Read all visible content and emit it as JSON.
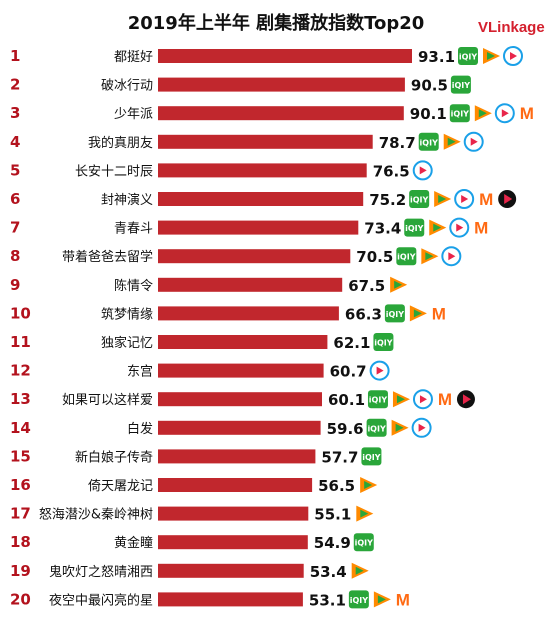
{
  "header": {
    "title": "2019年上半年 剧集播放指数Top20",
    "logo_text": "VLinkage"
  },
  "colors": {
    "bar": "#c1272d",
    "rank": "#b3121d",
    "iqiyi": "#2aa63a",
    "tencent": "#ff8a00",
    "youku": "#1aa0e8",
    "mango": "#ff6a13",
    "sohu": "#111111"
  },
  "platform_labels": {
    "iqiyi": "iQIY",
    "tencent": "tencent-video-icon",
    "youku": "youku-icon",
    "mango": "mango-tv-icon",
    "sohu": "sohu-video-icon"
  },
  "chart_data": {
    "type": "bar",
    "orientation": "horizontal",
    "title": "2019年上半年 剧集播放指数Top20",
    "ranks": [
      "1",
      "2",
      "3",
      "4",
      "5",
      "6",
      "7",
      "8",
      "9",
      "10",
      "11",
      "12",
      "13",
      "14",
      "15",
      "16",
      "17",
      "18",
      "19",
      "20"
    ],
    "categories": [
      "都挺好",
      "破冰行动",
      "少年派",
      "我的真朋友",
      "长安十二时辰",
      "封神演义",
      "青春斗",
      "带着爸爸去留学",
      "陈情令",
      "筑梦情缘",
      "独家记忆",
      "东宫",
      "如果可以这样爱",
      "白发",
      "新白娘子传奇",
      "倚天屠龙记",
      "怒海潜沙&秦岭神树",
      "黄金瞳",
      "鬼吹灯之怒晴湘西",
      "夜空中最闪亮的星"
    ],
    "values": [
      93.1,
      90.5,
      90.1,
      78.7,
      76.5,
      75.2,
      73.4,
      70.5,
      67.5,
      66.3,
      62.1,
      60.7,
      60.1,
      59.6,
      57.7,
      56.5,
      55.1,
      54.9,
      53.4,
      53.1
    ],
    "value_labels": [
      "93.1",
      "90.5",
      "90.1",
      "78.7",
      "76.5",
      "75.2",
      "73.4",
      "70.5",
      "67.5",
      "66.3",
      "62.1",
      "60.7",
      "60.1",
      "59.6",
      "57.7",
      "56.5",
      "55.1",
      "54.9",
      "53.4",
      "53.1"
    ],
    "platforms": [
      [
        "iqiyi",
        "tencent",
        "youku"
      ],
      [
        "iqiyi"
      ],
      [
        "iqiyi",
        "tencent",
        "youku",
        "mango"
      ],
      [
        "iqiyi",
        "tencent",
        "youku"
      ],
      [
        "youku"
      ],
      [
        "iqiyi",
        "tencent",
        "youku",
        "mango",
        "sohu"
      ],
      [
        "iqiyi",
        "tencent",
        "youku",
        "mango"
      ],
      [
        "iqiyi",
        "tencent",
        "youku"
      ],
      [
        "tencent"
      ],
      [
        "iqiyi",
        "tencent",
        "mango"
      ],
      [
        "iqiyi"
      ],
      [
        "youku"
      ],
      [
        "iqiyi",
        "tencent",
        "youku",
        "mango",
        "sohu"
      ],
      [
        "iqiyi",
        "tencent",
        "youku"
      ],
      [
        "iqiyi"
      ],
      [
        "tencent"
      ],
      [
        "tencent"
      ],
      [
        "iqiyi"
      ],
      [
        "tencent"
      ],
      [
        "iqiyi",
        "tencent",
        "mango"
      ]
    ]
  }
}
